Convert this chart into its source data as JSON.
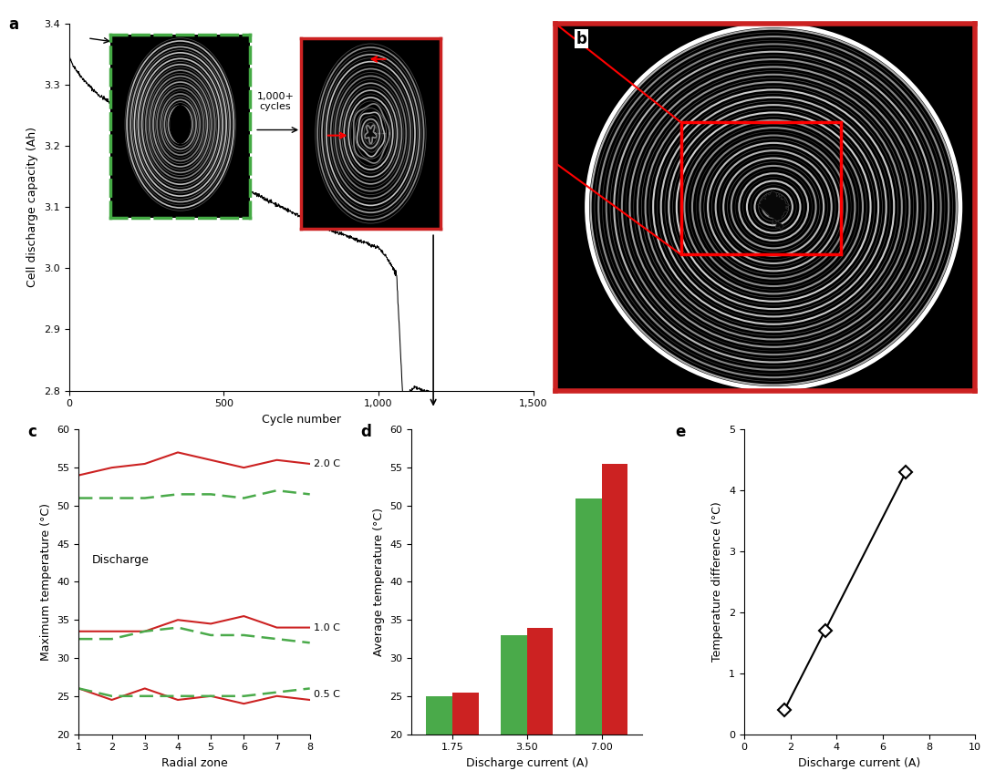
{
  "panel_a": {
    "label": "a",
    "xlabel": "Cycle number",
    "ylabel": "Cell discharge capacity (Ah)",
    "xlim": [
      0,
      1500
    ],
    "ylim": [
      2.8,
      3.4
    ],
    "yticks": [
      2.8,
      2.9,
      3.0,
      3.1,
      3.2,
      3.3,
      3.4
    ],
    "xtick_vals": [
      0,
      500,
      1000,
      1500
    ],
    "xtick_labels": [
      "0",
      "500",
      "1,000",
      "1,500"
    ],
    "annotation_cycles": "1,000+\ncycles"
  },
  "panel_b": {
    "label": "b",
    "border_color": "#cc2222",
    "bg_color": "#000000"
  },
  "panel_c": {
    "label": "c",
    "xlabel": "Radial zone",
    "ylabel": "Maximum temperature (°C)",
    "ylim": [
      20,
      60
    ],
    "yticks": [
      20,
      25,
      30,
      35,
      40,
      45,
      50,
      55,
      60
    ],
    "xticks": [
      1,
      2,
      3,
      4,
      5,
      6,
      7,
      8
    ],
    "red_2C": [
      54.0,
      55.0,
      55.5,
      57.0,
      56.0,
      55.0,
      56.0,
      55.5
    ],
    "green_2C": [
      51.0,
      51.0,
      51.0,
      51.5,
      51.5,
      51.0,
      52.0,
      51.5
    ],
    "red_1C": [
      33.5,
      33.5,
      33.5,
      35.0,
      34.5,
      35.5,
      34.0,
      34.0
    ],
    "green_1C": [
      32.5,
      32.5,
      33.5,
      34.0,
      33.0,
      33.0,
      32.5,
      32.0
    ],
    "red_05C": [
      26.0,
      24.5,
      26.0,
      24.5,
      25.0,
      24.0,
      25.0,
      24.5
    ],
    "green_05C": [
      26.0,
      25.0,
      25.0,
      25.0,
      25.0,
      25.0,
      25.5,
      26.0
    ],
    "label_2C": "2.0 C",
    "label_1C": "1.0 C",
    "label_05C": "0.5 C",
    "label_discharge": "Discharge",
    "red_color": "#cc2222",
    "green_color": "#4aaa4a"
  },
  "panel_d": {
    "label": "d",
    "xlabel": "Discharge current (A)",
    "ylabel": "Average temperature (°C)",
    "categories": [
      "1.75",
      "3.50",
      "7.00"
    ],
    "ylim": [
      20,
      60
    ],
    "yticks": [
      20,
      25,
      30,
      35,
      40,
      45,
      50,
      55,
      60
    ],
    "green_bars": [
      25.0,
      33.0,
      51.0
    ],
    "red_bars": [
      25.5,
      34.0,
      55.5
    ],
    "bar_color_green": "#4aaa4a",
    "bar_color_red": "#cc2222",
    "bar_width": 0.35
  },
  "panel_e": {
    "label": "e",
    "xlabel": "Discharge current (A)",
    "ylabel": "Temperature difference (°C)",
    "xlim": [
      0,
      10
    ],
    "ylim": [
      0,
      5
    ],
    "yticks": [
      0,
      1,
      2,
      3,
      4,
      5
    ],
    "xticks": [
      0,
      2,
      4,
      6,
      8,
      10
    ],
    "x_data": [
      1.75,
      3.5,
      7.0
    ],
    "y_data": [
      0.4,
      1.7,
      4.3
    ]
  }
}
